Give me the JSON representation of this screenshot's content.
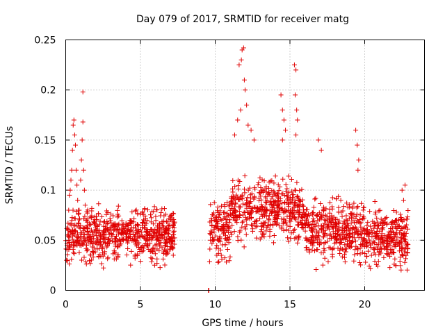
{
  "chart_data": {
    "type": "scatter",
    "title": "Day 079 of 2017, SRMTID for receiver matg",
    "xlabel": "GPS time / hours",
    "ylabel": "SRMTID / TECUs",
    "xlim": [
      0,
      24
    ],
    "ylim": [
      0,
      0.25
    ],
    "x_ticks": [
      0,
      5,
      10,
      15,
      20
    ],
    "x_tick_labels": [
      "0",
      "5",
      "10",
      "15",
      "20"
    ],
    "y_ticks": [
      0,
      0.05,
      0.1,
      0.15,
      0.2,
      0.25
    ],
    "y_tick_labels": [
      "0",
      "0.05",
      "0.1",
      "0.15",
      "0.2",
      "0.25"
    ],
    "grid": true,
    "marker": "plus",
    "color": "#e00000",
    "series": [
      {
        "name": "SRMTID",
        "segments": [
          {
            "x_start": 0.0,
            "x_end": 7.3,
            "baseline": 0.055,
            "spread": 0.03
          },
          {
            "x_start": 9.55,
            "x_end": 9.6,
            "baseline": 0.0,
            "spread": 0.0
          },
          {
            "x_start": 9.6,
            "x_end": 22.9,
            "baseline": 0.06,
            "spread": 0.035
          }
        ],
        "points": [
          [
            0.05,
            0.03
          ],
          [
            0.1,
            0.045
          ],
          [
            0.15,
            0.06
          ],
          [
            0.2,
            0.08
          ],
          [
            0.25,
            0.095
          ],
          [
            0.3,
            0.1
          ],
          [
            0.35,
            0.11
          ],
          [
            0.4,
            0.12
          ],
          [
            0.45,
            0.14
          ],
          [
            0.5,
            0.165
          ],
          [
            0.55,
            0.17
          ],
          [
            0.6,
            0.155
          ],
          [
            0.65,
            0.145
          ],
          [
            0.7,
            0.12
          ],
          [
            0.75,
            0.105
          ],
          [
            0.8,
            0.09
          ],
          [
            0.9,
            0.08
          ],
          [
            1.0,
            0.11
          ],
          [
            1.05,
            0.13
          ],
          [
            1.1,
            0.15
          ],
          [
            1.15,
            0.168
          ],
          [
            1.15,
            0.198
          ],
          [
            1.2,
            0.12
          ],
          [
            1.25,
            0.1
          ],
          [
            1.3,
            0.085
          ],
          [
            11.6,
            0.225
          ],
          [
            11.75,
            0.23
          ],
          [
            11.8,
            0.24
          ],
          [
            11.9,
            0.242
          ],
          [
            11.95,
            0.21
          ],
          [
            12.0,
            0.2
          ],
          [
            12.1,
            0.185
          ],
          [
            11.7,
            0.18
          ],
          [
            11.5,
            0.17
          ],
          [
            12.2,
            0.165
          ],
          [
            11.3,
            0.155
          ],
          [
            12.4,
            0.16
          ],
          [
            12.6,
            0.15
          ],
          [
            14.4,
            0.195
          ],
          [
            14.5,
            0.18
          ],
          [
            14.6,
            0.17
          ],
          [
            14.7,
            0.16
          ],
          [
            14.5,
            0.15
          ],
          [
            15.3,
            0.225
          ],
          [
            15.4,
            0.22
          ],
          [
            15.35,
            0.195
          ],
          [
            15.45,
            0.18
          ],
          [
            15.5,
            0.17
          ],
          [
            15.4,
            0.155
          ],
          [
            19.4,
            0.16
          ],
          [
            19.5,
            0.145
          ],
          [
            19.6,
            0.13
          ],
          [
            19.55,
            0.12
          ],
          [
            16.9,
            0.15
          ],
          [
            17.1,
            0.14
          ],
          [
            22.7,
            0.105
          ],
          [
            22.5,
            0.1
          ],
          [
            22.6,
            0.09
          ]
        ]
      }
    ]
  }
}
